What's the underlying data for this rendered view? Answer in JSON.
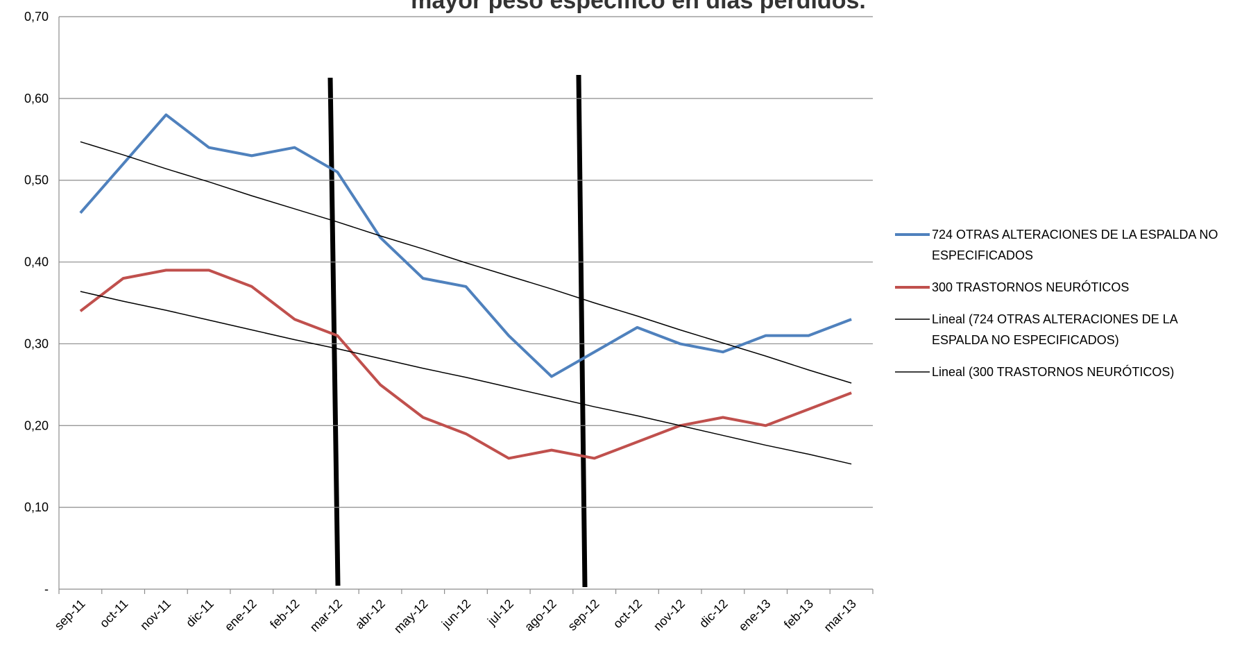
{
  "chart_data": {
    "type": "line",
    "title": "mayor peso específico en días perdidos.",
    "categories": [
      "sep-11",
      "oct-11",
      "nov-11",
      "dic-11",
      "ene-12",
      "feb-12",
      "mar-12",
      "abr-12",
      "may-12",
      "jun-12",
      "jul-12",
      "ago-12",
      "sep-12",
      "oct-12",
      "nov-12",
      "dic-12",
      "ene-13",
      "feb-13",
      "mar-13"
    ],
    "series": [
      {
        "name": "724 OTRAS ALTERACIONES DE LA ESPALDA NO ESPECIFICADOS",
        "color": "#4f81bd",
        "values": [
          0.46,
          0.52,
          0.58,
          0.54,
          0.53,
          0.54,
          0.51,
          0.43,
          0.38,
          0.37,
          0.31,
          0.26,
          0.29,
          0.32,
          0.3,
          0.29,
          0.31,
          0.31,
          0.33
        ]
      },
      {
        "name": "300 TRASTORNOS NEURÓTICOS",
        "color": "#c0504d",
        "values": [
          0.34,
          0.38,
          0.39,
          0.39,
          0.37,
          0.33,
          0.31,
          0.25,
          0.21,
          0.19,
          0.16,
          0.17,
          0.16,
          0.18,
          0.2,
          0.21,
          0.2,
          0.22,
          0.24
        ]
      },
      {
        "name": "Lineal (724 OTRAS ALTERACIONES DE LA ESPALDA NO ESPECIFICADOS)",
        "color": "#000000",
        "values": [
          0.547,
          0.531,
          0.514,
          0.498,
          0.481,
          0.465,
          0.449,
          0.432,
          0.416,
          0.399,
          0.383,
          0.367,
          0.35,
          0.334,
          0.317,
          0.301,
          0.285,
          0.268,
          0.252
        ]
      },
      {
        "name": "Lineal (300 TRASTORNOS NEURÓTICOS)",
        "color": "#000000",
        "values": [
          0.364,
          0.352,
          0.341,
          0.329,
          0.317,
          0.305,
          0.294,
          0.282,
          0.27,
          0.259,
          0.247,
          0.235,
          0.223,
          0.212,
          0.2,
          0.188,
          0.176,
          0.165,
          0.153
        ]
      }
    ],
    "ylim": [
      0,
      0.7
    ],
    "yticks": [
      {
        "value": 0,
        "label": "-"
      },
      {
        "value": 0.1,
        "label": "0,10"
      },
      {
        "value": 0.2,
        "label": "0,20"
      },
      {
        "value": 0.3,
        "label": "0,30"
      },
      {
        "value": 0.4,
        "label": "0,40"
      },
      {
        "value": 0.5,
        "label": "0,50"
      },
      {
        "value": 0.6,
        "label": "0,60"
      },
      {
        "value": 0.7,
        "label": "0,70"
      }
    ],
    "grid": true,
    "legend": "right"
  }
}
